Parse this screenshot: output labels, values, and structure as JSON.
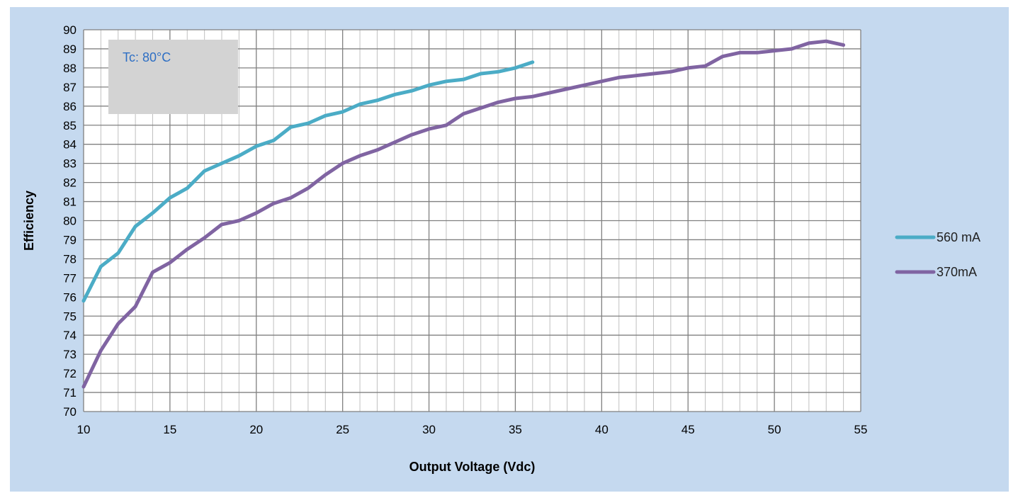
{
  "colors": {
    "panel_background": "#c5d9ef",
    "plot_background": "#ffffff",
    "major_grid": "#808080",
    "minor_grid": "#c0c0c0",
    "annotation_box": "#d3d3d3",
    "annotation_text": "#2e6fc4"
  },
  "chart_data": {
    "type": "line",
    "title": "",
    "xlabel": "Output Voltage (Vdc)",
    "ylabel": "Efficiency",
    "xlim": [
      10,
      55
    ],
    "ylim": [
      70,
      90
    ],
    "x_ticks": [
      10,
      15,
      20,
      25,
      30,
      35,
      40,
      45,
      50,
      55
    ],
    "y_ticks": [
      70,
      71,
      72,
      73,
      74,
      75,
      76,
      77,
      78,
      79,
      80,
      81,
      82,
      83,
      84,
      85,
      86,
      87,
      88,
      89,
      90
    ],
    "grid": true,
    "legend_position": "right",
    "annotation": "Tc: 80°C",
    "series": [
      {
        "name": "560 mA",
        "color": "#4bacc6",
        "x": [
          10,
          11,
          12,
          13,
          14,
          15,
          16,
          17,
          18,
          19,
          20,
          21,
          22,
          23,
          24,
          25,
          26,
          27,
          28,
          29,
          30,
          31,
          32,
          33,
          34,
          35,
          36
        ],
        "y": [
          75.8,
          77.6,
          78.3,
          79.7,
          80.4,
          81.2,
          81.7,
          82.6,
          83.0,
          83.4,
          83.9,
          84.2,
          84.9,
          85.1,
          85.5,
          85.7,
          86.1,
          86.3,
          86.6,
          86.8,
          87.1,
          87.3,
          87.4,
          87.7,
          87.8,
          88.0,
          88.3
        ]
      },
      {
        "name": "370mA",
        "color": "#8064a2",
        "x": [
          10,
          11,
          12,
          13,
          14,
          15,
          16,
          17,
          18,
          19,
          20,
          21,
          22,
          23,
          24,
          25,
          26,
          27,
          28,
          29,
          30,
          31,
          32,
          33,
          34,
          35,
          36,
          37,
          38,
          39,
          40,
          41,
          42,
          43,
          44,
          45,
          46,
          47,
          48,
          49,
          50,
          51,
          52,
          53,
          54
        ],
        "y": [
          71.3,
          73.2,
          74.6,
          75.5,
          77.3,
          77.8,
          78.5,
          79.1,
          79.8,
          80.0,
          80.4,
          80.9,
          81.2,
          81.7,
          82.4,
          83.0,
          83.4,
          83.7,
          84.1,
          84.5,
          84.8,
          85.0,
          85.6,
          85.9,
          86.2,
          86.4,
          86.5,
          86.7,
          86.9,
          87.1,
          87.3,
          87.5,
          87.6,
          87.7,
          87.8,
          88.0,
          88.1,
          88.6,
          88.8,
          88.8,
          88.9,
          89.0,
          89.3,
          89.4,
          89.2
        ]
      }
    ]
  }
}
